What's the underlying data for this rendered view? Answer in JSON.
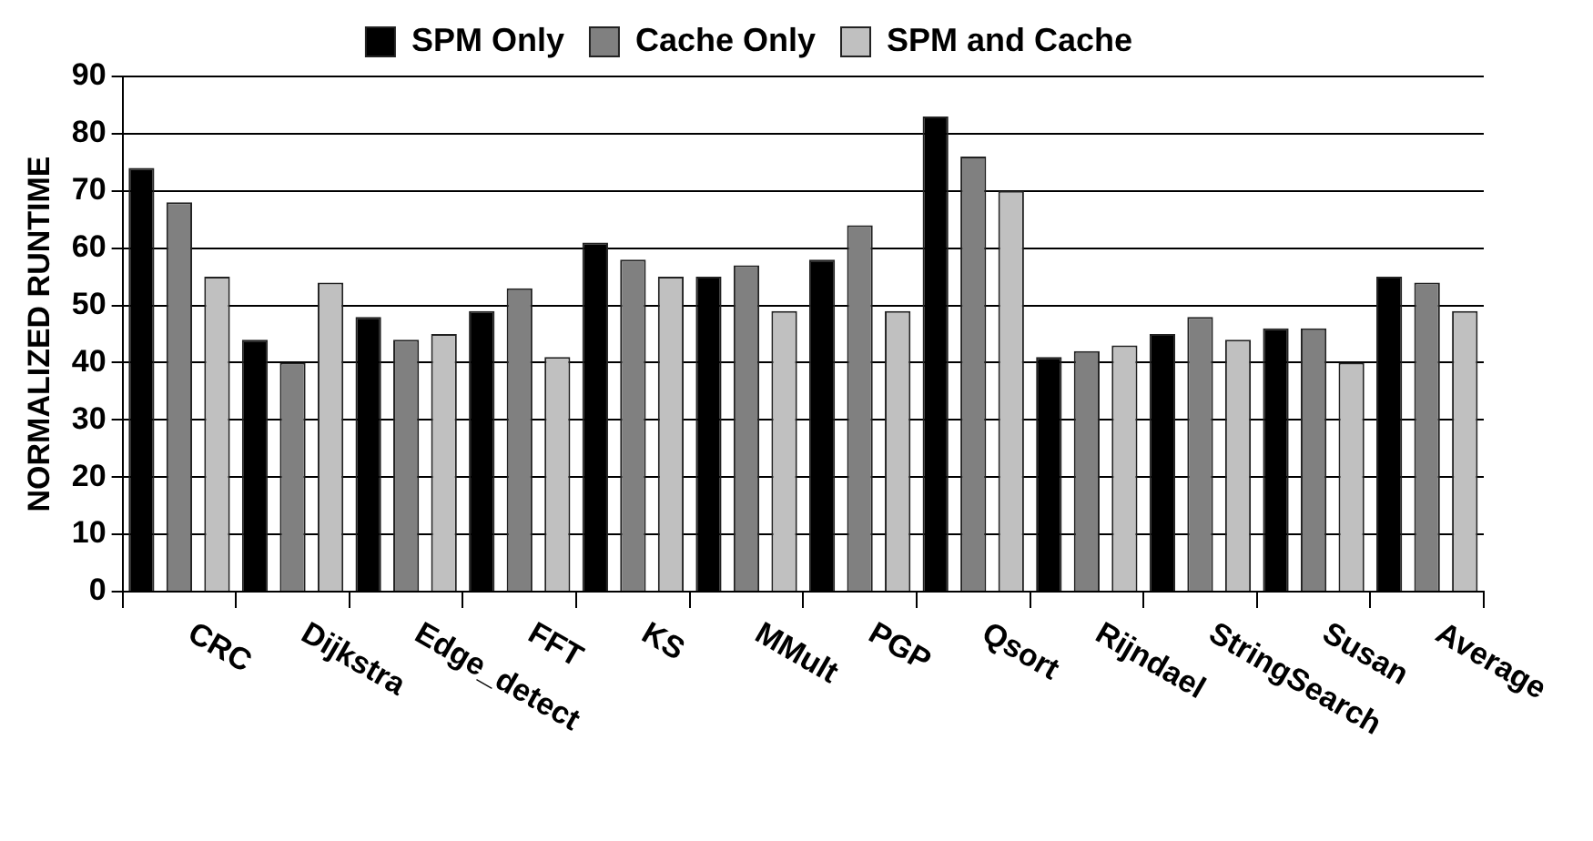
{
  "chart_data": {
    "type": "bar",
    "ylabel": "NORMALIZED RUNTIME",
    "categories": [
      "CRC",
      "Dijkstra",
      "Edge_detect",
      "FFT",
      "KS",
      "MMult",
      "PGP",
      "Qsort",
      "Rijndael",
      "StringSearch",
      "Susan",
      "Average"
    ],
    "series": [
      {
        "name": "SPM Only",
        "color": "#000000",
        "values": [
          74,
          44,
          48,
          49,
          61,
          55,
          58,
          83,
          41,
          45,
          46,
          55
        ]
      },
      {
        "name": "Cache Only",
        "color": "#808080",
        "values": [
          68,
          40,
          44,
          53,
          58,
          57,
          64,
          76,
          42,
          48,
          46,
          54
        ]
      },
      {
        "name": "SPM and Cache",
        "color": "#c0c0c0",
        "values": [
          55,
          54,
          45,
          41,
          55,
          49,
          49,
          70,
          43,
          44,
          40,
          49
        ]
      }
    ],
    "ylim": [
      0,
      90
    ],
    "yticks": [
      0,
      10,
      20,
      30,
      40,
      50,
      60,
      70,
      80,
      90
    ],
    "grid": "y",
    "legend": "top"
  }
}
